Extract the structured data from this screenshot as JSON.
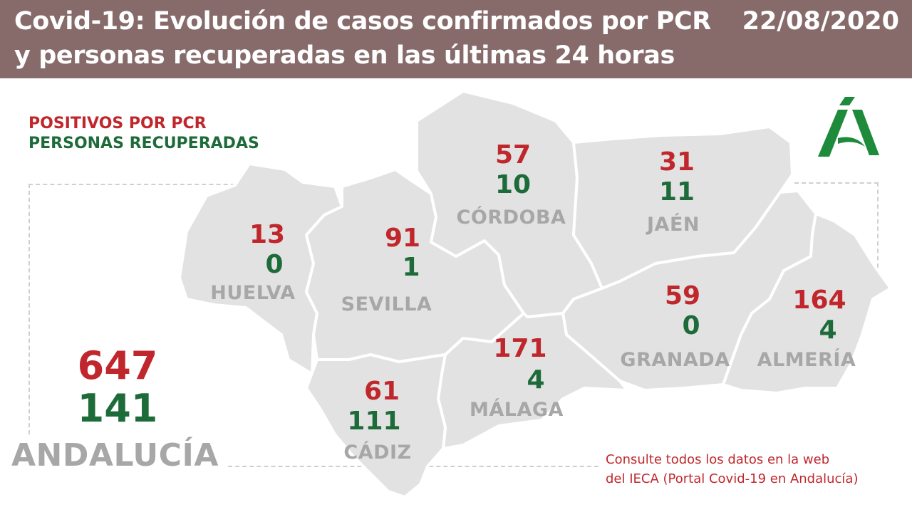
{
  "header": {
    "title": "Covid-19: Evolución de casos confirmados por PCR y personas recuperadas en las últimas 24 horas",
    "date": "22/08/2020"
  },
  "legend": {
    "positive_label": "POSITIVOS POR PCR",
    "recovered_label": "PERSONAS RECUPERADAS"
  },
  "colors": {
    "header_bg": "#876b6b",
    "positive": "#c0272d",
    "recovered": "#1e6b3a",
    "province_fill": "#e2e2e2",
    "province_label": "#a7a7a7",
    "logo_green": "#1e8a3b"
  },
  "total": {
    "name": "ANDALUCÍA",
    "positive": "647",
    "recovered": "141"
  },
  "provinces": [
    {
      "id": "huelva",
      "name": "HUELVA",
      "positive": "13",
      "recovered": "0"
    },
    {
      "id": "sevilla",
      "name": "SEVILLA",
      "positive": "91",
      "recovered": "1"
    },
    {
      "id": "cordoba",
      "name": "CÓRDOBA",
      "positive": "57",
      "recovered": "10"
    },
    {
      "id": "jaen",
      "name": "JAÉN",
      "positive": "31",
      "recovered": "11"
    },
    {
      "id": "granada",
      "name": "GRANADA",
      "positive": "59",
      "recovered": "0"
    },
    {
      "id": "almeria",
      "name": "ALMERÍA",
      "positive": "164",
      "recovered": "4"
    },
    {
      "id": "malaga",
      "name": "MÁLAGA",
      "positive": "171",
      "recovered": "4"
    },
    {
      "id": "cadiz",
      "name": "CÁDIZ",
      "positive": "61",
      "recovered": "111"
    }
  ],
  "footnote": {
    "line1": "Consulte todos los datos en la web",
    "line2": "del IECA (Portal Covid-19 en Andalucía)"
  },
  "logo": {
    "icon": "junta-de-andalucia-logo-icon"
  }
}
